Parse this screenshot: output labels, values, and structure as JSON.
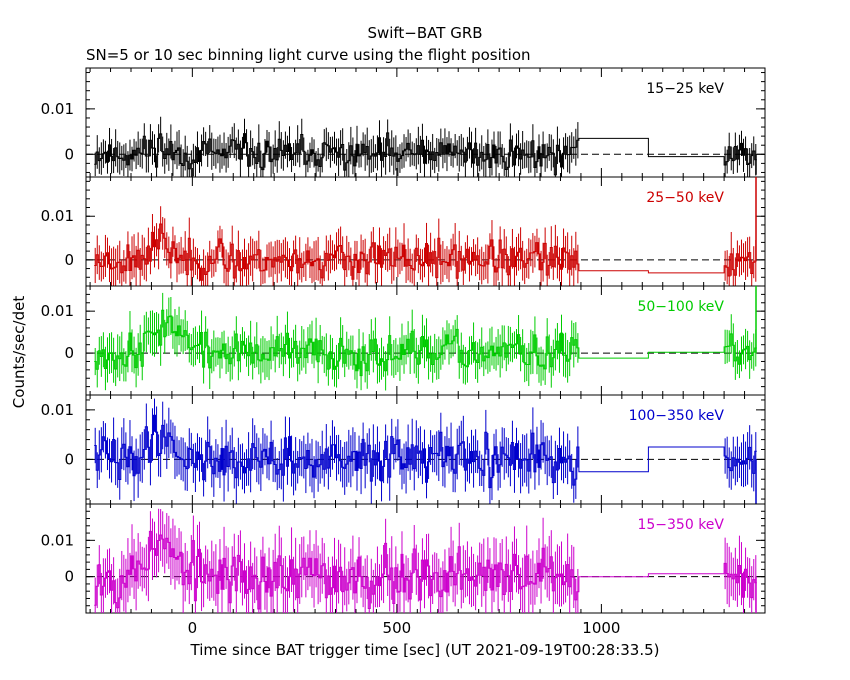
{
  "chart_data": {
    "type": "line",
    "title": "Swift−BAT GRB",
    "subtitle": "SN=5 or 10 sec binning light curve using the flight position",
    "xlabel": "Time since BAT trigger time [sec] (UT 2021-09-19T00:28:33.5)",
    "ylabel": "Counts/sec/det",
    "xlim": [
      -260,
      1400
    ],
    "x_ticks": [
      0,
      500,
      1000
    ],
    "x_tick_labels": [
      "0",
      "500",
      "1000"
    ],
    "y_ticks": [
      0,
      0.01
    ],
    "y_tick_labels": [
      "0",
      "0.01"
    ],
    "grid": false,
    "step_style": "histogram with error bars",
    "sparse_bins": [
      [
        945,
        1115
      ],
      [
        1115,
        1300
      ]
    ],
    "panels": [
      {
        "band": "15−25 keV",
        "color": "#000000",
        "ylim": [
          -0.005,
          0.019
        ],
        "noise": 0.0028,
        "err": 0.0035,
        "bursts": [
          [
            -85,
            20,
            0.002
          ]
        ],
        "sparse": [
          0.0035,
          -0.0005
        ],
        "end_spike": -0.0045,
        "seed": 11
      },
      {
        "band": "25−50 keV",
        "color": "#cc0000",
        "ylim": [
          -0.006,
          0.019
        ],
        "noise": 0.0032,
        "err": 0.0042,
        "bursts": [
          [
            -80,
            25,
            0.004
          ]
        ],
        "sparse": [
          -0.0025,
          -0.003
        ],
        "end_spike": 0.019,
        "seed": 23
      },
      {
        "band": "50−100 keV",
        "color": "#00cc00",
        "ylim": [
          -0.01,
          0.016
        ],
        "noise": 0.0035,
        "err": 0.0045,
        "bursts": [
          [
            -60,
            35,
            0.0075
          ]
        ],
        "sparse": [
          -0.0012,
          0.0002
        ],
        "end_spike": 0.016,
        "seed": 37
      },
      {
        "band": "100−350 keV",
        "color": "#0000cc",
        "ylim": [
          -0.009,
          0.013
        ],
        "noise": 0.0035,
        "err": 0.0045,
        "bursts": [
          [
            -80,
            30,
            0.0055
          ]
        ],
        "sparse": [
          -0.0025,
          0.0025
        ],
        "end_spike": -0.009,
        "seed": 41
      },
      {
        "band": "15−350 keV",
        "color": "#cc00cc",
        "ylim": [
          -0.01,
          0.02
        ],
        "noise": 0.006,
        "err": 0.0075,
        "bursts": [
          [
            -80,
            35,
            0.009
          ]
        ],
        "sparse": [
          0.0,
          0.0008
        ],
        "end_spike": -0.01,
        "seed": 53
      }
    ]
  }
}
